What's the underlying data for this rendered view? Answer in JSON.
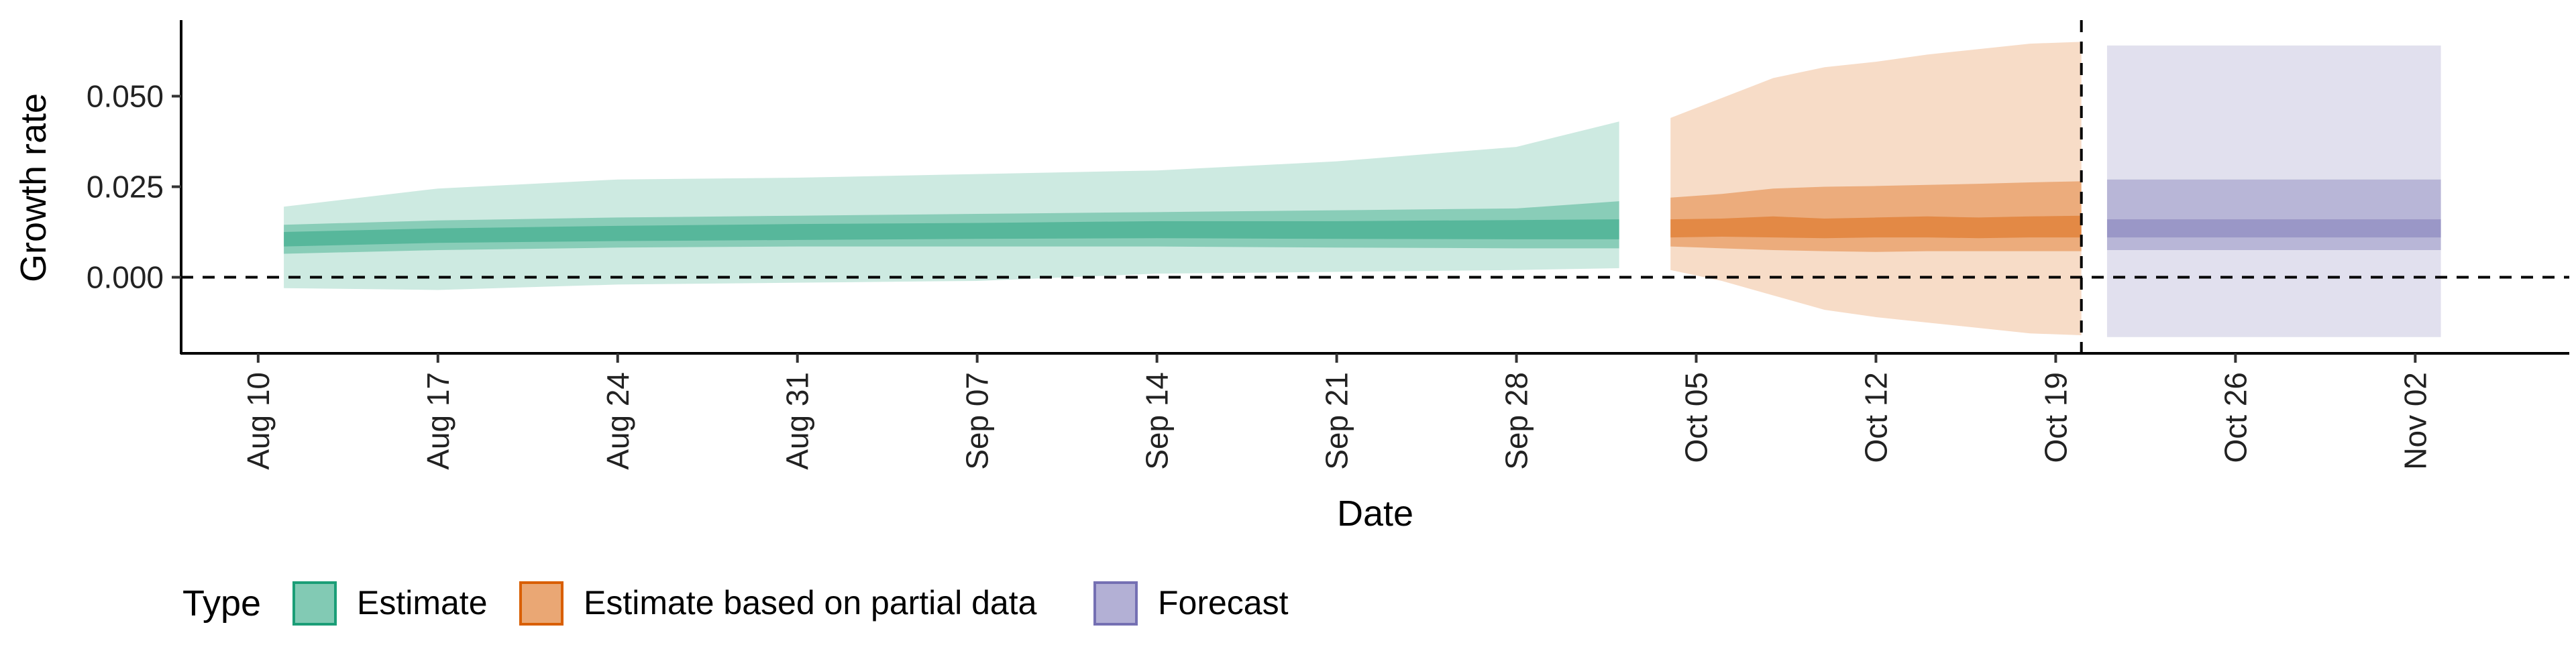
{
  "chart_data": {
    "type": "area",
    "xlabel": "Date",
    "ylabel": "Growth rate",
    "x_tick_labels": [
      "Aug 10",
      "Aug 17",
      "Aug 24",
      "Aug 31",
      "Sep 07",
      "Sep 14",
      "Sep 21",
      "Sep 28",
      "Oct 05",
      "Oct 12",
      "Oct 19",
      "Oct 26",
      "Nov 02"
    ],
    "x_tick_dates": [
      "2020-08-10",
      "2020-08-17",
      "2020-08-24",
      "2020-08-31",
      "2020-09-07",
      "2020-09-14",
      "2020-09-21",
      "2020-09-28",
      "2020-10-05",
      "2020-10-12",
      "2020-10-19",
      "2020-10-26",
      "2020-11-02"
    ],
    "y_ticks": [
      0.0,
      0.025,
      0.05
    ],
    "y_tick_labels": [
      "0.000",
      "0.025",
      "0.050"
    ],
    "xlim": [
      "2020-08-07",
      "2020-11-08"
    ],
    "ylim": [
      -0.021,
      0.071
    ],
    "reference_hline": 0,
    "reference_vline": "2020-10-20",
    "grid": false,
    "legend_position": "bottom",
    "legend_title": "Type",
    "legend": [
      {
        "label": "Estimate",
        "color": "#1b9e77"
      },
      {
        "label": "Estimate based on partial data",
        "color": "#d95f02"
      },
      {
        "label": "Forecast",
        "color": "#7570b3"
      }
    ],
    "series": [
      {
        "name": "Estimate",
        "color": "#1b9e77",
        "x_range": [
          "2020-08-11",
          "2020-10-02"
        ],
        "x": [
          "2020-08-11",
          "2020-08-17",
          "2020-08-24",
          "2020-08-31",
          "2020-09-07",
          "2020-09-14",
          "2020-09-21",
          "2020-09-28",
          "2020-10-02"
        ],
        "median": [
          0.0105,
          0.0115,
          0.0122,
          0.0125,
          0.0128,
          0.0132,
          0.013,
          0.0132,
          0.0133
        ],
        "lower_20": [
          0.0085,
          0.0095,
          0.01,
          0.0103,
          0.0106,
          0.0108,
          0.0106,
          0.0105,
          0.0105
        ],
        "upper_20": [
          0.0125,
          0.0135,
          0.0142,
          0.0147,
          0.015,
          0.0155,
          0.0155,
          0.0158,
          0.016
        ],
        "lower_50": [
          0.0065,
          0.0075,
          0.0082,
          0.0085,
          0.0085,
          0.0085,
          0.0082,
          0.008,
          0.008
        ],
        "upper_50": [
          0.0145,
          0.0157,
          0.0165,
          0.017,
          0.0175,
          0.018,
          0.0185,
          0.019,
          0.021
        ],
        "lower_90": [
          -0.003,
          -0.0035,
          -0.002,
          -0.0015,
          -0.001,
          0.001,
          0.0015,
          0.002,
          0.0025
        ],
        "upper_90": [
          0.0195,
          0.0245,
          0.027,
          0.0275,
          0.0285,
          0.0295,
          0.032,
          0.036,
          0.043
        ]
      },
      {
        "name": "Estimate based on partial data",
        "color": "#d95f02",
        "x_range": [
          "2020-10-04",
          "2020-10-20"
        ],
        "x": [
          "2020-10-04",
          "2020-10-06",
          "2020-10-08",
          "2020-10-10",
          "2020-10-12",
          "2020-10-14",
          "2020-10-16",
          "2020-10-18",
          "2020-10-20"
        ],
        "median": [
          0.0135,
          0.0138,
          0.014,
          0.0135,
          0.0138,
          0.014,
          0.0138,
          0.014,
          0.0142
        ],
        "lower_20": [
          0.011,
          0.0112,
          0.011,
          0.0108,
          0.011,
          0.011,
          0.0108,
          0.011,
          0.011
        ],
        "upper_20": [
          0.016,
          0.0162,
          0.0168,
          0.0162,
          0.0165,
          0.0168,
          0.0165,
          0.0168,
          0.017
        ],
        "lower_50": [
          0.0085,
          0.008,
          0.0075,
          0.0072,
          0.007,
          0.0072,
          0.0072,
          0.0072,
          0.0072
        ],
        "upper_50": [
          0.022,
          0.023,
          0.0245,
          0.025,
          0.0252,
          0.0255,
          0.0258,
          0.0262,
          0.0265
        ],
        "lower_90": [
          0.002,
          -0.001,
          -0.005,
          -0.009,
          -0.011,
          -0.0125,
          -0.014,
          -0.0155,
          -0.016
        ],
        "upper_90": [
          0.044,
          0.0495,
          0.055,
          0.058,
          0.0595,
          0.0615,
          0.063,
          0.0645,
          0.065
        ]
      },
      {
        "name": "Forecast",
        "color": "#7570b3",
        "x_range": [
          "2020-10-21",
          "2020-11-03"
        ],
        "x": [
          "2020-10-21",
          "2020-11-03"
        ],
        "median": [
          0.014,
          0.014
        ],
        "lower_20": [
          0.011,
          0.011
        ],
        "upper_20": [
          0.016,
          0.016
        ],
        "lower_50": [
          0.0075,
          0.0075
        ],
        "upper_50": [
          0.027,
          0.027
        ],
        "lower_90": [
          -0.0165,
          -0.0165
        ],
        "upper_90": [
          0.064,
          0.064
        ]
      }
    ]
  }
}
